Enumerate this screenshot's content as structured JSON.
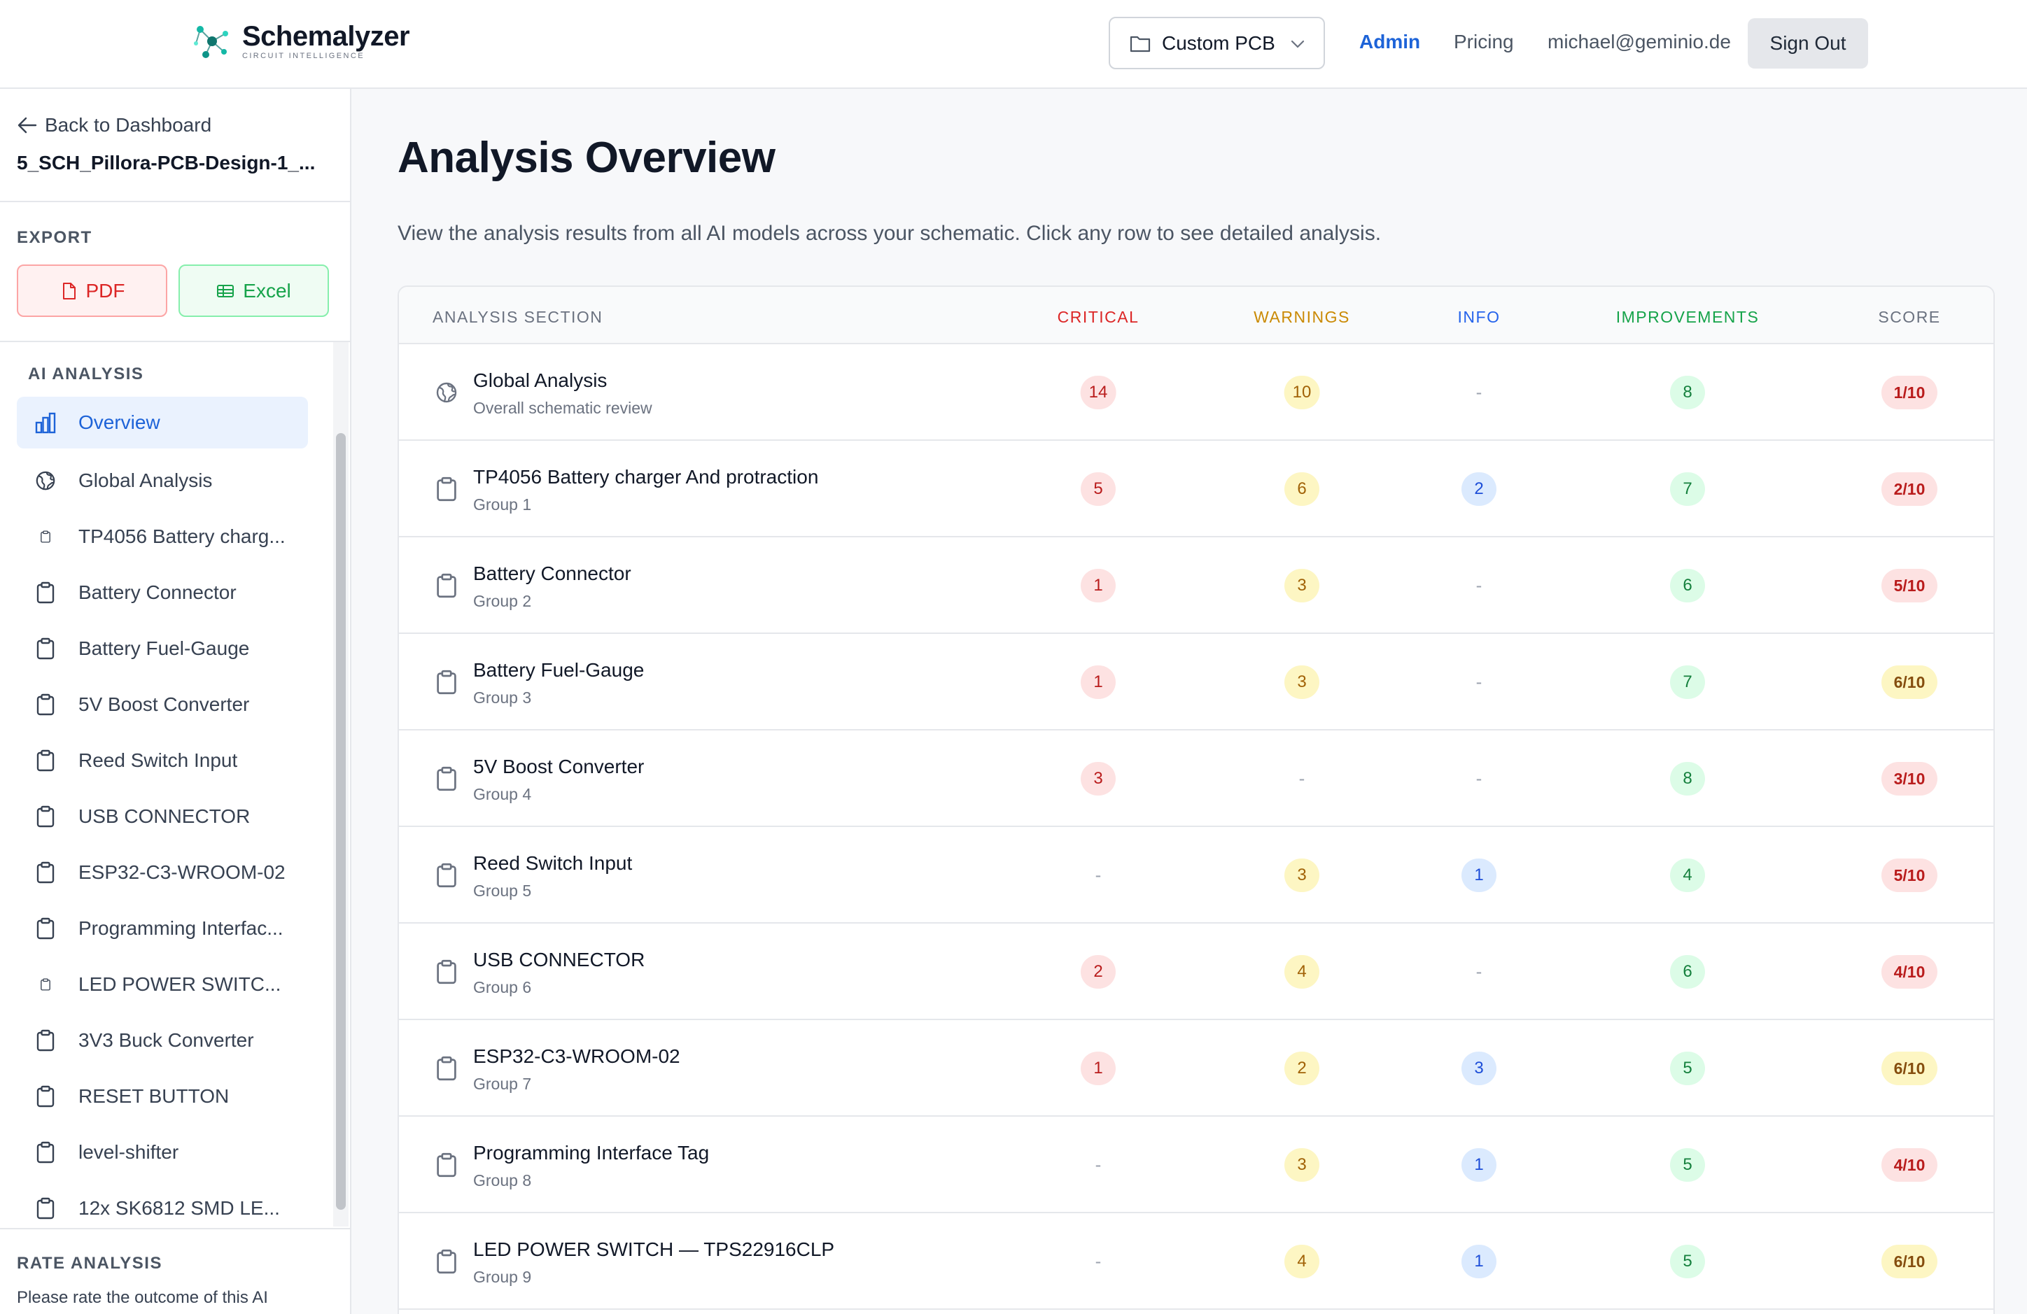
{
  "app": {
    "name": "Schemalyzer",
    "tagline": "CIRCUIT INTELLIGENCE"
  },
  "header": {
    "project_select": "Custom PCB",
    "nav_admin": "Admin",
    "nav_pricing": "Pricing",
    "user_email": "michael@geminio.de",
    "sign_out": "Sign Out"
  },
  "sidebar": {
    "back_label": "Back to Dashboard",
    "project_name": "5_SCH_Pillora-PCB-Design-1_...",
    "export_title": "EXPORT",
    "export_pdf": "PDF",
    "export_excel": "Excel",
    "ai_title": "AI ANALYSIS",
    "items": [
      {
        "label": "Overview",
        "icon": "bar-chart-icon",
        "active": true
      },
      {
        "label": "Global Analysis",
        "icon": "globe-icon"
      },
      {
        "label": "TP4056 Battery charg...",
        "icon": "clipboard-icon",
        "small": true
      },
      {
        "label": "Battery Connector",
        "icon": "clipboard-icon"
      },
      {
        "label": "Battery Fuel-Gauge",
        "icon": "clipboard-icon"
      },
      {
        "label": "5V Boost Converter",
        "icon": "clipboard-icon"
      },
      {
        "label": "Reed Switch Input",
        "icon": "clipboard-icon"
      },
      {
        "label": "USB CONNECTOR",
        "icon": "clipboard-icon"
      },
      {
        "label": "ESP32-C3-WROOM-02",
        "icon": "clipboard-icon"
      },
      {
        "label": "Programming Interfac...",
        "icon": "clipboard-icon"
      },
      {
        "label": "LED POWER SWITC...",
        "icon": "clipboard-icon",
        "small": true
      },
      {
        "label": "3V3 Buck Converter",
        "icon": "clipboard-icon"
      },
      {
        "label": "RESET BUTTON",
        "icon": "clipboard-icon"
      },
      {
        "label": "level-shifter",
        "icon": "clipboard-icon"
      },
      {
        "label": "12x SK6812 SMD LE...",
        "icon": "clipboard-icon"
      }
    ],
    "rate_title": "RATE ANALYSIS",
    "rate_text": "Please rate the outcome of this AI analysis"
  },
  "main": {
    "title": "Analysis Overview",
    "description": "View the analysis results from all AI models across your schematic. Click any row to see detailed analysis.",
    "columns": {
      "section": "ANALYSIS SECTION",
      "critical": "CRITICAL",
      "warnings": "WARNINGS",
      "info": "INFO",
      "improvements": "IMPROVEMENTS",
      "score": "SCORE"
    },
    "rows": [
      {
        "name": "Global Analysis",
        "sub": "Overall schematic review",
        "icon": "globe-icon",
        "critical": "14",
        "warnings": "10",
        "info": "-",
        "improvements": "8",
        "score": "1/10",
        "level": "bad"
      },
      {
        "name": "TP4056 Battery charger And protraction",
        "sub": "Group 1",
        "icon": "clipboard-icon",
        "critical": "5",
        "warnings": "6",
        "info": "2",
        "improvements": "7",
        "score": "2/10",
        "level": "bad"
      },
      {
        "name": "Battery Connector",
        "sub": "Group 2",
        "icon": "clipboard-icon",
        "critical": "1",
        "warnings": "3",
        "info": "-",
        "improvements": "6",
        "score": "5/10",
        "level": "bad"
      },
      {
        "name": "Battery Fuel-Gauge",
        "sub": "Group 3",
        "icon": "clipboard-icon",
        "critical": "1",
        "warnings": "3",
        "info": "-",
        "improvements": "7",
        "score": "6/10",
        "level": "mid"
      },
      {
        "name": "5V Boost Converter",
        "sub": "Group 4",
        "icon": "clipboard-icon",
        "critical": "3",
        "warnings": "-",
        "info": "-",
        "improvements": "8",
        "score": "3/10",
        "level": "bad"
      },
      {
        "name": "Reed Switch Input",
        "sub": "Group 5",
        "icon": "clipboard-icon",
        "critical": "-",
        "warnings": "3",
        "info": "1",
        "improvements": "4",
        "score": "5/10",
        "level": "bad"
      },
      {
        "name": "USB CONNECTOR",
        "sub": "Group 6",
        "icon": "clipboard-icon",
        "critical": "2",
        "warnings": "4",
        "info": "-",
        "improvements": "6",
        "score": "4/10",
        "level": "bad"
      },
      {
        "name": "ESP32-C3-WROOM-02",
        "sub": "Group 7",
        "icon": "clipboard-icon",
        "critical": "1",
        "warnings": "2",
        "info": "3",
        "improvements": "5",
        "score": "6/10",
        "level": "mid"
      },
      {
        "name": "Programming Interface Tag",
        "sub": "Group 8",
        "icon": "clipboard-icon",
        "critical": "-",
        "warnings": "3",
        "info": "1",
        "improvements": "5",
        "score": "4/10",
        "level": "bad"
      },
      {
        "name": "LED POWER SWITCH — TPS22916CLP",
        "sub": "Group 9",
        "icon": "clipboard-icon",
        "critical": "-",
        "warnings": "4",
        "info": "1",
        "improvements": "5",
        "score": "6/10",
        "level": "mid"
      }
    ]
  }
}
